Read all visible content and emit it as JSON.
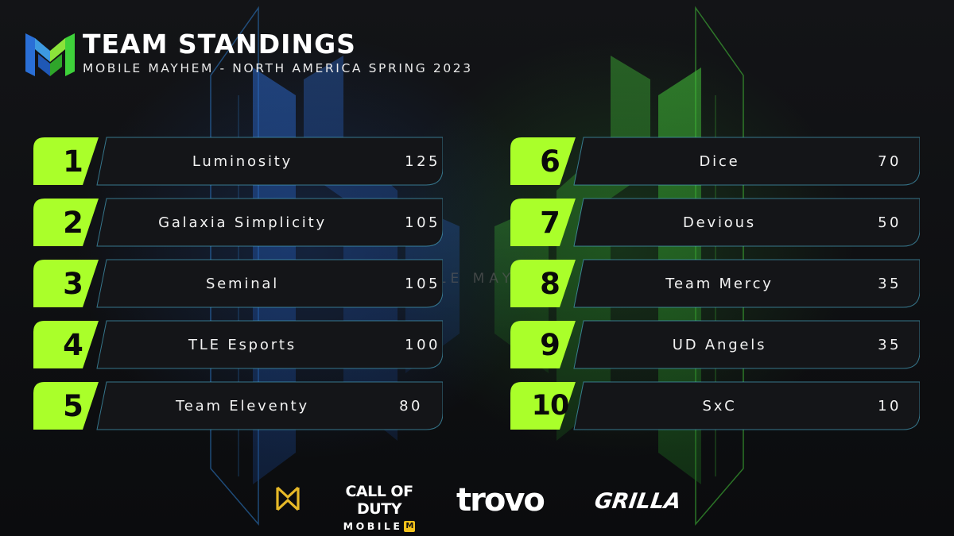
{
  "header": {
    "title": "TEAM STANDINGS",
    "subtitle": "MOBILE MAYHEM - NORTH AMERICA SPRING 2023"
  },
  "standings": [
    {
      "rank": "1",
      "team": "Luminosity",
      "points": "125"
    },
    {
      "rank": "2",
      "team": "Galaxia Simplicity",
      "points": "105"
    },
    {
      "rank": "3",
      "team": "Seminal",
      "points": "105"
    },
    {
      "rank": "4",
      "team": "TLE Esports",
      "points": "100"
    },
    {
      "rank": "5",
      "team": "Team Eleventy",
      "points": "80"
    },
    {
      "rank": "6",
      "team": "Dice",
      "points": "70"
    },
    {
      "rank": "7",
      "team": "Devious",
      "points": "50"
    },
    {
      "rank": "8",
      "team": "Team Mercy",
      "points": "35"
    },
    {
      "rank": "9",
      "team": "UD Angels",
      "points": "35"
    },
    {
      "rank": "10",
      "team": "SxC",
      "points": "10"
    }
  ],
  "background_text": "ILE MAY",
  "sponsors": {
    "mobile_mayhem_icon": "mobile-mayhem-icon",
    "cod_line1": "CALL OF DUTY",
    "cod_line2": "MOBILE",
    "cod_badge": "M",
    "trovo": "trovo",
    "grilla": "GRILLA"
  },
  "colors": {
    "accent_green": "#aaff2a",
    "accent_green_dark": "#3fe01f",
    "plate": "#141518",
    "plate_border": "#4fb8d8",
    "logo_blue": "#2a6fd6",
    "logo_green": "#3ed13a"
  }
}
